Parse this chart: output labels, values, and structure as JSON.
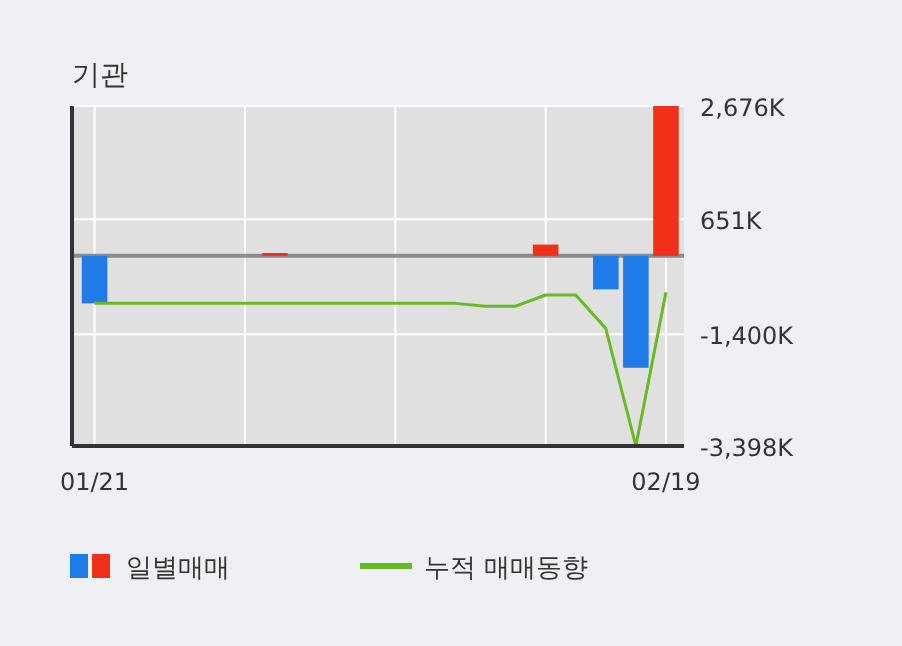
{
  "chart_data": {
    "type": "bar",
    "title": "기관",
    "categories": [
      "01/21",
      null,
      null,
      null,
      null,
      null,
      null,
      null,
      null,
      null,
      null,
      null,
      null,
      null,
      null,
      null,
      null,
      null,
      null,
      "02/19"
    ],
    "series": [
      {
        "name": "일별매매",
        "colors": [
          "#1e7be8",
          "#1e7be8",
          "#1e7be8",
          "#1e7be8",
          "#1e7be8",
          "#1e7be8",
          "#f03018",
          "#1e7be8",
          "#1e7be8",
          "#1e7be8",
          "#1e7be8",
          "#1e7be8",
          "#1e7be8",
          "#1e7be8",
          "#1e7be8",
          "#f03018",
          "#1e7be8",
          "#1e7be8",
          "#1e7be8",
          "#f03018"
        ],
        "values": [
          -850,
          0,
          0,
          0,
          0,
          0,
          50,
          0,
          0,
          0,
          0,
          0,
          0,
          0,
          0,
          200,
          0,
          -600,
          -2000,
          2676
        ]
      },
      {
        "name": "누적 매매동향",
        "type": "line",
        "color": "#66bb22",
        "values": [
          -850,
          -850,
          -850,
          -850,
          -850,
          -850,
          -850,
          -850,
          -850,
          -850,
          -850,
          -850,
          -850,
          -900,
          -900,
          -700,
          -700,
          -1300,
          -3398,
          -650
        ]
      }
    ],
    "ylim": [
      -3398,
      2676
    ],
    "yticks": [
      {
        "value": -3398,
        "label": "-3,398K"
      },
      {
        "value": -1400,
        "label": "-1,400K"
      },
      {
        "value": 651,
        "label": "651K"
      },
      {
        "value": 2676,
        "label": "2,676K"
      }
    ],
    "ref_lines": [
      {
        "axis": "y",
        "value": 0,
        "color": "#8c8c8c"
      }
    ],
    "grid": true,
    "legend": "bottom"
  }
}
